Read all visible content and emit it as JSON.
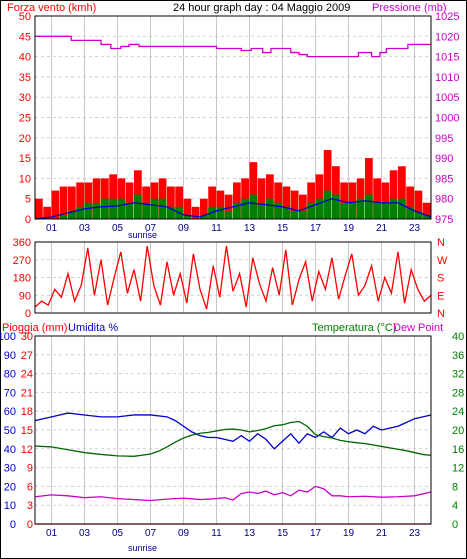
{
  "chart_data": [
    {
      "type": "line",
      "panel": "wind_pressure",
      "title": "24 hour graph day : 04 Maggio 2009",
      "left_axis_label": "Forza vento (kmh)",
      "right_axis_label": "Pressione (mb)",
      "left_ticks": [
        "0",
        "5",
        "10",
        "15",
        "20",
        "25",
        "30",
        "35",
        "40",
        "45",
        "50"
      ],
      "right_ticks": [
        "975",
        "980",
        "985",
        "990",
        "995",
        "1000",
        "1005",
        "1010",
        "1015",
        "1020",
        "1025"
      ],
      "x_ticks": [
        "01",
        "03",
        "05",
        "07",
        "09",
        "11",
        "13",
        "15",
        "17",
        "19",
        "21",
        "23"
      ],
      "ylim_left": [
        0,
        50
      ],
      "ylim_right": [
        975,
        1025
      ],
      "xlim_hours": [
        0,
        24
      ],
      "sunrise_label": "sunrise",
      "sunrise_hour": 6.3,
      "grid": true,
      "series": [
        {
          "role": "pressure",
          "axis": "right",
          "color": "#cc00cc",
          "shape": "step",
          "x": [
            0,
            2.2,
            4.0,
            4.6,
            5.2,
            5.7,
            6.3,
            11.0,
            12.5,
            13.1,
            13.8,
            14.3,
            15.5,
            16.0,
            16.5,
            19.0,
            19.6,
            20.4,
            20.9,
            21.3,
            22.6,
            24
          ],
          "y": [
            1020,
            1019,
            1018,
            1017,
            1017.5,
            1018,
            1017.5,
            1017,
            1016.5,
            1017,
            1016,
            1017,
            1016,
            1015.5,
            1015,
            1015,
            1016,
            1015,
            1016,
            1017,
            1018,
            1018
          ]
        },
        {
          "role": "wind_gust",
          "axis": "left",
          "color": "#ff0000",
          "shape": "bars",
          "x": [
            0.0,
            0.5,
            1.0,
            1.5,
            2.0,
            2.5,
            3.0,
            3.5,
            4.0,
            4.5,
            5.0,
            5.5,
            6.0,
            6.5,
            7.0,
            7.5,
            8.0,
            8.5,
            9.0,
            9.5,
            10.0,
            10.5,
            11.0,
            11.5,
            12.0,
            12.5,
            13.0,
            13.5,
            14.0,
            14.5,
            15.0,
            15.5,
            16.0,
            16.5,
            17.0,
            17.5,
            18.0,
            18.5,
            19.0,
            19.5,
            20.0,
            20.5,
            21.0,
            21.5,
            22.0,
            22.5,
            23.0,
            23.5
          ],
          "y": [
            5,
            3,
            7,
            8,
            8,
            9,
            9,
            10,
            10,
            11,
            10,
            9,
            12,
            8,
            9,
            10,
            8,
            8,
            5,
            3,
            5,
            8,
            7,
            6,
            9,
            10,
            14,
            10,
            11,
            9,
            8,
            7,
            6,
            9,
            11,
            17,
            13,
            9,
            9,
            10,
            15,
            10,
            9,
            12,
            13,
            8,
            7,
            4
          ]
        },
        {
          "role": "wind_average",
          "axis": "left",
          "color": "#008000",
          "shape": "bars",
          "x": [
            0.0,
            0.5,
            1.0,
            1.5,
            2.0,
            2.5,
            3.0,
            3.5,
            4.0,
            4.5,
            5.0,
            5.5,
            6.0,
            6.5,
            7.0,
            7.5,
            8.0,
            8.5,
            9.0,
            9.5,
            10.0,
            10.5,
            11.0,
            11.5,
            12.0,
            12.5,
            13.0,
            13.5,
            14.0,
            14.5,
            15.0,
            15.5,
            16.0,
            16.5,
            17.0,
            17.5,
            18.0,
            18.5,
            19.0,
            19.5,
            20.0,
            20.5,
            21.0,
            21.5,
            22.0,
            22.5,
            23.0,
            23.5
          ],
          "y": [
            0,
            0,
            0,
            1,
            2,
            3,
            4,
            4,
            5,
            5,
            5,
            4,
            6,
            4,
            5,
            5,
            3,
            3,
            1,
            0,
            1,
            3,
            3,
            2,
            4,
            5,
            6,
            4,
            5,
            4,
            3,
            2,
            2,
            4,
            5,
            7,
            6,
            4,
            4,
            5,
            6,
            4,
            4,
            5,
            5,
            3,
            2,
            1
          ]
        },
        {
          "role": "wind_mean_line",
          "axis": "left",
          "color": "#0000cc",
          "shape": "line",
          "x": [
            0,
            1,
            2,
            3,
            4,
            5,
            6,
            7,
            8,
            9,
            10,
            11,
            12,
            13,
            14,
            15,
            16,
            17,
            18,
            19,
            20,
            21,
            22,
            23,
            24
          ],
          "y": [
            0,
            0.5,
            1.5,
            2.5,
            3,
            3.2,
            4,
            3.5,
            3,
            1,
            0.5,
            2,
            3,
            4,
            3.5,
            3,
            2,
            3.5,
            5,
            4,
            4.5,
            4,
            4,
            2,
            0.5
          ]
        }
      ]
    },
    {
      "type": "line",
      "panel": "wind_direction",
      "left_ticks": [
        "0",
        "90",
        "180",
        "270",
        "360"
      ],
      "right_ticks": [
        "N",
        "E",
        "S",
        "W",
        "N"
      ],
      "ylim": [
        0,
        360
      ],
      "xlim_hours": [
        0,
        24
      ],
      "series": [
        {
          "role": "direction",
          "color": "#ff0000",
          "shape": "line",
          "x": [
            0.0,
            0.4,
            0.8,
            1.2,
            1.6,
            2.0,
            2.4,
            2.8,
            3.2,
            3.6,
            4.0,
            4.4,
            4.8,
            5.2,
            5.6,
            6.0,
            6.4,
            6.8,
            7.2,
            7.6,
            8.0,
            8.4,
            8.8,
            9.2,
            9.6,
            10.0,
            10.4,
            10.8,
            11.2,
            11.6,
            12.0,
            12.4,
            12.8,
            13.2,
            13.6,
            14.0,
            14.4,
            14.8,
            15.2,
            15.6,
            16.0,
            16.4,
            16.8,
            17.2,
            17.6,
            18.0,
            18.4,
            18.8,
            19.2,
            19.6,
            20.0,
            20.4,
            20.8,
            21.2,
            21.6,
            22.0,
            22.4,
            22.8,
            23.2,
            23.6,
            24.0
          ],
          "y": [
            30,
            60,
            40,
            120,
            80,
            200,
            60,
            140,
            330,
            90,
            270,
            40,
            180,
            310,
            100,
            220,
            60,
            340,
            140,
            40,
            260,
            90,
            200,
            50,
            300,
            120,
            20,
            240,
            80,
            340,
            110,
            200,
            30,
            280,
            150,
            60,
            230,
            90,
            320,
            40,
            170,
            260,
            60,
            210,
            120,
            280,
            70,
            190,
            300,
            90,
            140,
            240,
            60,
            180,
            100,
            310,
            50,
            220,
            120,
            60,
            90
          ]
        }
      ]
    },
    {
      "type": "line",
      "panel": "rain_humidity_temperature",
      "rain_label": "Pioggia (mm)",
      "humidity_label": "Umidita %",
      "temperature_label": "Temperatura (°C)",
      "dewpoint_label": "Dew Point",
      "humidity_ticks": [
        "0",
        "10",
        "20",
        "30",
        "40",
        "50",
        "60",
        "70",
        "80",
        "90",
        "100"
      ],
      "rain_ticks": [
        "0",
        "3",
        "6",
        "9",
        "12",
        "15",
        "18",
        "21",
        "24",
        "27",
        "30"
      ],
      "temperature_ticks": [
        "0",
        "4",
        "8",
        "12",
        "16",
        "20",
        "24",
        "28",
        "32",
        "36",
        "40"
      ],
      "x_ticks": [
        "01",
        "03",
        "05",
        "07",
        "09",
        "11",
        "13",
        "15",
        "17",
        "19",
        "21",
        "23"
      ],
      "ylim_humidity": [
        0,
        100
      ],
      "ylim_temperature": [
        0,
        40
      ],
      "xlim_hours": [
        0,
        24
      ],
      "sunrise_label": "sunrise",
      "sunrise_hour": 6.3,
      "series": [
        {
          "role": "humidity",
          "axis": "humidity",
          "color": "#0000cc",
          "shape": "line",
          "x": [
            0,
            1,
            2,
            3,
            4,
            5,
            6,
            7,
            8,
            8.5,
            9,
            9.5,
            10,
            10.5,
            11,
            11.5,
            12,
            12.5,
            13,
            13.5,
            14,
            14.5,
            15,
            15.5,
            16,
            16.5,
            17,
            17.5,
            18,
            18.5,
            19,
            19.5,
            20,
            20.5,
            21,
            21.5,
            22,
            22.5,
            23,
            23.5,
            24
          ],
          "y": [
            55,
            57,
            59,
            58,
            57,
            57,
            58,
            58,
            57,
            55,
            52,
            49,
            47,
            46,
            46,
            45,
            44,
            47,
            44,
            48,
            45,
            40,
            44,
            48,
            43,
            48,
            46,
            49,
            46,
            51,
            48,
            50,
            48,
            52,
            50,
            51,
            52,
            54,
            56,
            57,
            58
          ]
        },
        {
          "role": "temperature",
          "axis": "temperature",
          "color": "#006600",
          "shape": "line",
          "x": [
            0,
            1,
            2,
            3,
            4,
            5,
            6,
            7,
            7.5,
            8,
            8.5,
            9,
            9.5,
            10,
            10.5,
            11,
            11.5,
            12,
            12.5,
            13,
            13.5,
            14,
            14.5,
            15,
            15.5,
            16,
            16.5,
            17,
            17.5,
            18,
            18.5,
            19,
            19.5,
            20,
            20.5,
            21,
            21.5,
            22,
            22.5,
            23,
            23.5,
            24
          ],
          "y": [
            16.6,
            16.4,
            15.8,
            15.2,
            14.8,
            14.5,
            14.4,
            14.9,
            15.5,
            16.4,
            17.4,
            18.3,
            18.9,
            19.3,
            19.5,
            19.8,
            20.1,
            20.2,
            20.0,
            19.6,
            19.9,
            20.3,
            20.9,
            21.1,
            21.6,
            21.8,
            20.8,
            19.0,
            18.6,
            18.3,
            17.8,
            17.5,
            17.3,
            17.1,
            16.8,
            16.5,
            16.2,
            15.9,
            15.6,
            15.2,
            14.8,
            14.6
          ]
        },
        {
          "role": "dew_point",
          "axis": "temperature",
          "color": "#cc00cc",
          "shape": "line",
          "x": [
            0,
            1,
            2,
            3,
            4,
            5,
            6,
            7,
            8,
            9,
            10,
            11,
            11.5,
            12,
            12.5,
            13,
            13.5,
            14,
            14.5,
            15,
            15.5,
            16,
            16.5,
            17,
            17.5,
            18,
            18.5,
            19,
            20,
            21,
            22,
            23,
            24
          ],
          "y": [
            5.8,
            6.2,
            6.0,
            5.6,
            5.8,
            5.4,
            5.2,
            5.0,
            5.3,
            5.5,
            5.2,
            5.4,
            5.6,
            5.1,
            6.5,
            6.8,
            6.5,
            7.0,
            6.2,
            6.7,
            6.0,
            7.2,
            6.8,
            8.0,
            7.5,
            6.0,
            6.0,
            5.8,
            5.9,
            5.7,
            5.8,
            6.0,
            6.8
          ]
        },
        {
          "role": "rain",
          "axis": "rain",
          "color": "#ff0000",
          "shape": "line",
          "x": [
            0,
            24
          ],
          "y": [
            0,
            0
          ]
        }
      ]
    }
  ],
  "colors": {
    "red": "#ff0000",
    "magenta": "#cc00cc",
    "green": "#008000",
    "dark_green": "#006600",
    "blue": "#0000cc",
    "grid": "#c8c8c8"
  }
}
